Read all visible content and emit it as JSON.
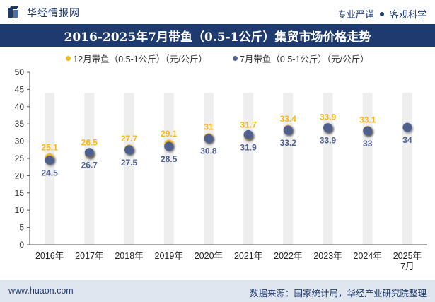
{
  "header": {
    "brand_name": "华经情报网",
    "tag_left": "专业严谨",
    "tag_right": "客观科学"
  },
  "title": "2016-2025年7月带鱼（0.5-1公斤）集贸市场价格走势",
  "footer": {
    "website": "www.huaon.com",
    "source": "数据来源：国家统计局，华经产业研究院整理"
  },
  "colors": {
    "dec_series": "#f6b818",
    "jul_series": "#50618f",
    "bar": "#eeeeee",
    "brand": "#1f3a6e"
  },
  "chart_data": {
    "type": "scatter",
    "categories": [
      "2016年",
      "2017年",
      "2018年",
      "2019年",
      "2020年",
      "2021年",
      "2022年",
      "2023年",
      "2024年",
      "2025年\n7月"
    ],
    "ylim": [
      0,
      50
    ],
    "yticks": [
      0,
      5,
      10,
      15,
      20,
      25,
      30,
      35,
      40,
      45,
      50
    ],
    "grid": false,
    "legend_position": "top-center",
    "series": [
      {
        "name": "12月带鱼（0.5-1公斤）（元/公斤）",
        "color": "#f6b818",
        "values": [
          25.1,
          26.5,
          27.7,
          29.1,
          31,
          31.7,
          33.4,
          33.9,
          33.1,
          null
        ]
      },
      {
        "name": "7月带鱼（0.5-1公斤）（元/公斤）",
        "color": "#50618f",
        "values": [
          24.5,
          26.7,
          27.5,
          28.5,
          30.8,
          31.9,
          33.2,
          33.9,
          33,
          34
        ]
      }
    ]
  }
}
